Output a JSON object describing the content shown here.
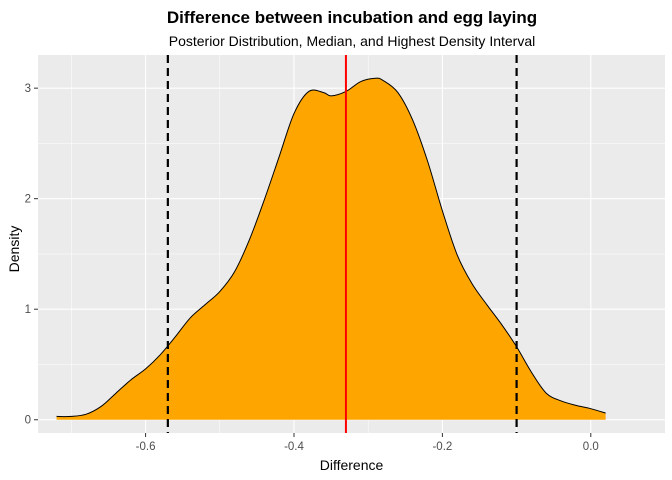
{
  "chart_data": {
    "type": "area",
    "title": "Difference between incubation and egg laying",
    "subtitle": "Posterior Distribution, Median, and Highest Density Interval",
    "xlabel": "Difference",
    "ylabel": "Density",
    "xlim": [
      -0.745,
      0.1
    ],
    "ylim": [
      -0.12,
      3.3
    ],
    "x_ticks": [
      -0.6,
      -0.4,
      -0.2,
      0.0
    ],
    "x_tick_labels": [
      "-0.6",
      "-0.4",
      "-0.2",
      "0.0"
    ],
    "y_ticks": [
      0,
      1,
      2,
      3
    ],
    "y_tick_labels": [
      "0",
      "1",
      "2",
      "3"
    ],
    "grid": true,
    "background": "#ebebeb",
    "fill_color": "#FFA500",
    "line_color": "#000000",
    "series": [
      {
        "x": [
          -0.72,
          -0.7,
          -0.68,
          -0.66,
          -0.64,
          -0.62,
          -0.6,
          -0.58,
          -0.56,
          -0.54,
          -0.52,
          -0.5,
          -0.48,
          -0.46,
          -0.44,
          -0.42,
          -0.4,
          -0.38,
          -0.36,
          -0.35,
          -0.33,
          -0.31,
          -0.29,
          -0.28,
          -0.26,
          -0.24,
          -0.22,
          -0.2,
          -0.18,
          -0.16,
          -0.14,
          -0.12,
          -0.1,
          -0.08,
          -0.06,
          -0.04,
          -0.02,
          0.0,
          0.02
        ],
        "y": [
          0.03,
          0.03,
          0.05,
          0.12,
          0.24,
          0.36,
          0.46,
          0.59,
          0.75,
          0.92,
          1.04,
          1.16,
          1.34,
          1.63,
          1.99,
          2.38,
          2.77,
          2.97,
          2.96,
          2.93,
          2.97,
          3.06,
          3.09,
          3.07,
          2.96,
          2.71,
          2.34,
          1.89,
          1.49,
          1.23,
          1.04,
          0.86,
          0.66,
          0.43,
          0.24,
          0.17,
          0.13,
          0.1,
          0.06
        ]
      }
    ],
    "median": -0.33,
    "median_color": "#FF0000",
    "hdi": [
      -0.57,
      -0.1
    ],
    "hdi_color": "#000000"
  }
}
